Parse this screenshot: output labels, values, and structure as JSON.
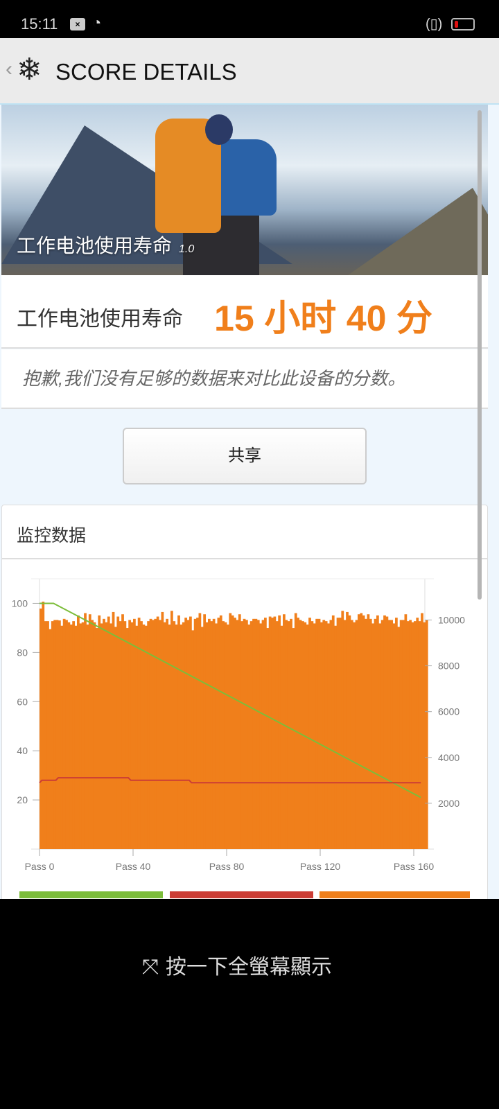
{
  "status_bar": {
    "time": "15:11",
    "sim_icon": "sim-no-service-icon",
    "sim_glyph": "×",
    "wifi_icon": "wifi-icon",
    "vibrate_icon": "vibrate-icon",
    "battery_level_percent": 10,
    "battery_color": "#e01010"
  },
  "app_bar": {
    "back_icon": "chevron-left-icon",
    "logo_icon": "snowflake-icon",
    "title": "SCORE DETAILS"
  },
  "hero": {
    "title": "工作电池使用寿命",
    "version": "1.0"
  },
  "score": {
    "label": "工作电池使用寿命",
    "value": "15 小时 40 分",
    "color": "#f07f1b"
  },
  "message": "抱歉,我们没有足够的数据来对比此设备的分数。",
  "share_button": "共享",
  "monitoring": {
    "title": "监控数据"
  },
  "chart_data": {
    "type": "bar+line",
    "x_tick_labels": [
      "Pass 0",
      "Pass 40",
      "Pass 80",
      "Pass 120",
      "Pass 160"
    ],
    "x_ticks": [
      0,
      40,
      80,
      120,
      160
    ],
    "xlim": [
      0,
      164
    ],
    "left_axis": {
      "ticks": [
        20,
        40,
        60,
        80,
        100
      ],
      "ylim": [
        0,
        110
      ]
    },
    "right_axis": {
      "ticks": [
        2000,
        4000,
        6000,
        8000,
        10000
      ],
      "ylim": [
        0,
        11800
      ]
    },
    "grid": false,
    "legend_placement": "bottom",
    "series": [
      {
        "type": "line",
        "axis": "left",
        "color": "#7cbd3a",
        "points": [
          [
            0,
            100
          ],
          [
            6,
            100
          ],
          [
            22,
            92
          ],
          [
            163,
            21
          ]
        ]
      },
      {
        "type": "line",
        "axis": "left",
        "color": "#cc3d35",
        "points": [
          [
            0,
            27
          ],
          [
            1,
            28
          ],
          [
            7,
            28
          ],
          [
            8,
            29
          ],
          [
            38,
            29
          ],
          [
            39,
            28
          ],
          [
            64,
            28
          ],
          [
            65,
            27
          ],
          [
            163,
            27
          ]
        ]
      },
      {
        "type": "bar",
        "axis": "right",
        "color": "#f07f1b",
        "values": [
          10500,
          10800,
          9950,
          9950,
          9600,
          9950,
          10000,
          10000,
          9980,
          9750,
          10050,
          10000,
          9900,
          9800,
          9950,
          9750,
          10200,
          9850,
          9900,
          10300,
          9800,
          10250,
          10000,
          9900,
          9650,
          10200,
          9850,
          10050,
          9900,
          10150,
          9850,
          10350,
          9700,
          10150,
          9950,
          10250,
          9950,
          9650,
          10000,
          9900,
          10050,
          9750,
          10100,
          9950,
          9800,
          9750,
          9950,
          10050,
          10000,
          10050,
          10150,
          10000,
          10350,
          9900,
          10050,
          9800,
          10400,
          9950,
          9800,
          10200,
          9800,
          9900,
          10100,
          10000,
          10150,
          9550,
          10050,
          10100,
          10300,
          9700,
          10250,
          9900,
          10050,
          9950,
          10050,
          9850,
          10100,
          10200,
          9950,
          9900,
          9800,
          10300,
          10200,
          10100,
          10000,
          10250,
          9950,
          10050,
          10000,
          9800,
          9950,
          10050,
          10050,
          10000,
          9850,
          10000,
          10100,
          9650,
          10150,
          10100,
          10150,
          9950,
          10200,
          9750,
          10250,
          10000,
          9950,
          10050,
          9650,
          10300,
          10100,
          10000,
          9950,
          9900,
          9800,
          10100,
          9950,
          9850,
          10050,
          10050,
          9900,
          10000,
          9950,
          9850,
          10000,
          10200,
          9750,
          10100,
          10100,
          10400,
          10000,
          10350,
          10200,
          10000,
          9900,
          10000,
          10250,
          10300,
          10200,
          10050,
          10250,
          10050,
          9850,
          10050,
          10200,
          9850,
          10000,
          10200,
          10150,
          10000,
          10000,
          9850,
          10100,
          9700,
          10000,
          10000,
          10250,
          9950,
          10000,
          9900,
          9950,
          10100,
          9950,
          10300,
          9900,
          10000
        ]
      }
    ],
    "legend_colors": [
      "#7cbd3a",
      "#cc3d35",
      "#f07f1b"
    ]
  },
  "fullscreen_hint": {
    "icon": "expand-icon",
    "label": "按一下全螢幕顯示"
  }
}
